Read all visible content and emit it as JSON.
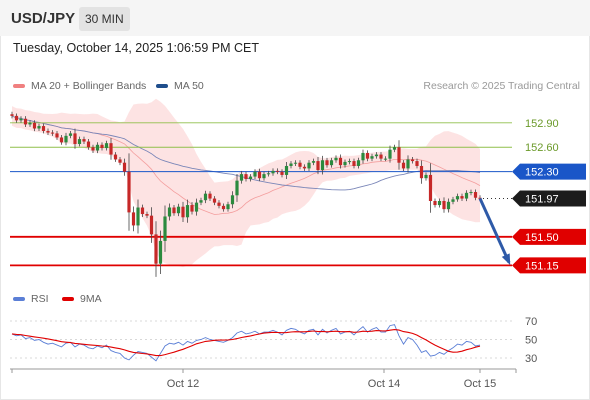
{
  "header": {
    "symbol": "USD/JPY",
    "timeframe_label": "30 MIN",
    "datetime": "Tuesday, October 14, 2025 1:06:59 PM CET"
  },
  "legend": {
    "ma20": {
      "label": "MA 20 + Bollinger Bands",
      "color": "#f08080"
    },
    "ma50": {
      "label": "MA 50",
      "color": "#1f4e8c"
    },
    "credit": "Research © 2025 Trading Central"
  },
  "rsi_legend": {
    "rsi": {
      "label": "RSI",
      "color": "#5b7fd6"
    },
    "ma9": {
      "label": "9MA",
      "color": "#e00000"
    }
  },
  "chart_data": [
    {
      "type": "candlestick",
      "ylim": [
        150.97,
        153.18
      ],
      "x_ticks": [
        "Oct 12",
        "Oct 14",
        "Oct 15"
      ],
      "levels": [
        {
          "value": 152.9,
          "label": "152.90",
          "color": "#8fbf4a",
          "kind": "resistance"
        },
        {
          "value": 152.6,
          "label": "152.60",
          "color": "#8fbf4a",
          "kind": "resistance"
        },
        {
          "value": 152.3,
          "label": "152.30",
          "color": "#1a56c8",
          "kind": "pivot"
        },
        {
          "value": 151.5,
          "label": "151.50",
          "color": "#e00000",
          "kind": "support"
        },
        {
          "value": 151.15,
          "label": "151.15",
          "color": "#e00000",
          "kind": "support"
        }
      ],
      "last_price": {
        "value": 151.97,
        "label": "151.97"
      },
      "forecast": {
        "from": 151.97,
        "to": 151.15
      },
      "colors": {
        "up": "#2b8a3e",
        "down": "#c62828",
        "band": "#fde0e0"
      },
      "candles": [
        152.985,
        152.93,
        152.95,
        152.88,
        152.9,
        152.83,
        152.86,
        152.8,
        152.78,
        152.77,
        152.72,
        152.66,
        152.74,
        152.77,
        152.64,
        152.7,
        152.67,
        152.6,
        152.56,
        152.63,
        152.59,
        152.65,
        152.51,
        152.45,
        152.41,
        152.3,
        151.8,
        151.64,
        151.86,
        151.78,
        151.76,
        151.53,
        151.17,
        151.45,
        151.75,
        151.86,
        151.79,
        151.87,
        151.74,
        151.89,
        151.81,
        151.92,
        151.95,
        152.03,
        151.97,
        151.92,
        151.88,
        151.84,
        151.9,
        152.01,
        152.19,
        152.27,
        152.21,
        152.24,
        152.3,
        152.22,
        152.27,
        152.28,
        152.31,
        152.3,
        152.26,
        152.37,
        152.4,
        152.41,
        152.36,
        152.34,
        152.41,
        152.43,
        152.32,
        152.44,
        152.38,
        152.44,
        152.47,
        152.38,
        152.42,
        152.43,
        152.37,
        152.44,
        152.53,
        152.46,
        152.49,
        152.51,
        152.46,
        152.46,
        152.57,
        152.6,
        152.41,
        152.34,
        152.45,
        152.43,
        152.37,
        152.22,
        152.26,
        151.94,
        151.89,
        151.94,
        151.84,
        151.93,
        151.96,
        152.0,
        151.97,
        152.04,
        152.05,
        151.98,
        151.97
      ]
    },
    {
      "type": "line",
      "title": "RSI",
      "ylim": [
        25,
        75
      ],
      "y_ticks": [
        70,
        50,
        30
      ],
      "series": [
        {
          "name": "RSI",
          "color": "#5b7fd6",
          "values": [
            56,
            54,
            55,
            51,
            52,
            49,
            50,
            47,
            45,
            46,
            44,
            42,
            46,
            47,
            42,
            45,
            44,
            41,
            40,
            43,
            41,
            44,
            38,
            36,
            35,
            30,
            28,
            33,
            37,
            36,
            35,
            31,
            27,
            35,
            43,
            46,
            45,
            47,
            44,
            48,
            46,
            49,
            50,
            52,
            50,
            49,
            48,
            47,
            49,
            52,
            57,
            59,
            56,
            57,
            59,
            56,
            58,
            58,
            60,
            58,
            55,
            60,
            62,
            61,
            58,
            56,
            60,
            61,
            55,
            61,
            57,
            60,
            62,
            56,
            58,
            59,
            55,
            60,
            64,
            58,
            61,
            63,
            58,
            58,
            65,
            66,
            54,
            45,
            52,
            50,
            44,
            36,
            38,
            32,
            33,
            36,
            34,
            38,
            41,
            45,
            44,
            48,
            47,
            43,
            44
          ]
        },
        {
          "name": "9MA",
          "color": "#e00000",
          "values": [
            56,
            55.5,
            55.2,
            54.3,
            53.6,
            52.8,
            52.2,
            51.4,
            50.6,
            49.7,
            48.7,
            47.6,
            47.1,
            46.6,
            45.8,
            45.3,
            44.8,
            44.3,
            43.8,
            43.5,
            43.0,
            42.6,
            41.8,
            40.9,
            40.1,
            38.8,
            37.2,
            36.1,
            35.5,
            34.9,
            34.4,
            33.6,
            32.6,
            32.6,
            33.7,
            35.0,
            36.3,
            37.9,
            39.4,
            41.3,
            43.3,
            45.4,
            46.6,
            47.9,
            48.5,
            49.1,
            49.3,
            49.4,
            49.6,
            50.0,
            51.0,
            52.2,
            53.0,
            53.9,
            55.0,
            55.9,
            56.9,
            57.4,
            57.8,
            57.6,
            57.3,
            57.5,
            58.1,
            58.4,
            58.3,
            58.3,
            58.8,
            59.2,
            58.5,
            58.8,
            58.3,
            58.6,
            59.0,
            58.4,
            58.4,
            58.5,
            57.8,
            58.1,
            59.0,
            58.6,
            59.0,
            59.6,
            59.4,
            59.3,
            60.1,
            60.7,
            60.2,
            58.5,
            57.8,
            56.6,
            54.8,
            52.1,
            49.6,
            46.7,
            43.9,
            41.7,
            39.5,
            37.2,
            36.3,
            36.4,
            37.3,
            39.0,
            40.2,
            41.7,
            42.9
          ]
        }
      ]
    }
  ]
}
